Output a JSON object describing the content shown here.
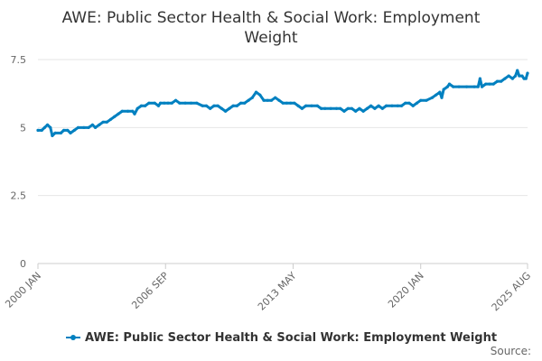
{
  "chart_data": {
    "type": "line",
    "title_lines": [
      "AWE: Public Sector Health & Social Work: Employment",
      "Weight"
    ],
    "source_label": "Source:",
    "legend": {
      "name": "AWE: Public Sector Health & Social Work: Employment Weight",
      "position": "bottom-center"
    },
    "series_color": "#0080c0",
    "ylim": [
      0,
      7.5
    ],
    "y_ticks": [
      0,
      2.5,
      5,
      7.5
    ],
    "y_tick_labels": [
      "0",
      "2.5",
      "5",
      "7.5"
    ],
    "grid": true,
    "x_ticks": [
      {
        "label": "2000 JAN",
        "x": 2000.0
      },
      {
        "label": "2006 SEP",
        "x": 2006.667
      },
      {
        "label": "2013 MAY",
        "x": 2013.333
      },
      {
        "label": "2020 JAN",
        "x": 2020.0
      },
      {
        "label": "2025 AUG",
        "x": 2025.583
      }
    ],
    "xlim": [
      2000.0,
      2025.583
    ],
    "series": [
      {
        "name": "AWE: Public Sector Health & Social Work: Employment Weight",
        "points": [
          [
            2000.0,
            4.9
          ],
          [
            2000.2,
            4.9
          ],
          [
            2000.35,
            5.0
          ],
          [
            2000.5,
            5.1
          ],
          [
            2000.65,
            5.0
          ],
          [
            2000.75,
            4.7
          ],
          [
            2000.9,
            4.8
          ],
          [
            2001.2,
            4.8
          ],
          [
            2001.35,
            4.9
          ],
          [
            2001.55,
            4.9
          ],
          [
            2001.7,
            4.8
          ],
          [
            2001.9,
            4.9
          ],
          [
            2002.1,
            5.0
          ],
          [
            2002.4,
            5.0
          ],
          [
            2002.65,
            5.0
          ],
          [
            2002.85,
            5.1
          ],
          [
            2003.0,
            5.0
          ],
          [
            2003.2,
            5.1
          ],
          [
            2003.4,
            5.2
          ],
          [
            2003.6,
            5.2
          ],
          [
            2003.8,
            5.3
          ],
          [
            2004.0,
            5.4
          ],
          [
            2004.2,
            5.5
          ],
          [
            2004.4,
            5.6
          ],
          [
            2004.7,
            5.6
          ],
          [
            2004.95,
            5.6
          ],
          [
            2005.05,
            5.5
          ],
          [
            2005.2,
            5.7
          ],
          [
            2005.4,
            5.8
          ],
          [
            2005.6,
            5.8
          ],
          [
            2005.8,
            5.9
          ],
          [
            2006.1,
            5.9
          ],
          [
            2006.3,
            5.8
          ],
          [
            2006.4,
            5.9
          ],
          [
            2006.6,
            5.9
          ],
          [
            2006.8,
            5.9
          ],
          [
            2007.0,
            5.9
          ],
          [
            2007.2,
            6.0
          ],
          [
            2007.4,
            5.9
          ],
          [
            2007.7,
            5.9
          ],
          [
            2008.0,
            5.9
          ],
          [
            2008.3,
            5.9
          ],
          [
            2008.6,
            5.8
          ],
          [
            2008.8,
            5.8
          ],
          [
            2009.0,
            5.7
          ],
          [
            2009.2,
            5.8
          ],
          [
            2009.4,
            5.8
          ],
          [
            2009.6,
            5.7
          ],
          [
            2009.8,
            5.6
          ],
          [
            2010.0,
            5.7
          ],
          [
            2010.2,
            5.8
          ],
          [
            2010.4,
            5.8
          ],
          [
            2010.6,
            5.9
          ],
          [
            2010.8,
            5.9
          ],
          [
            2011.0,
            6.0
          ],
          [
            2011.2,
            6.1
          ],
          [
            2011.4,
            6.3
          ],
          [
            2011.6,
            6.2
          ],
          [
            2011.8,
            6.0
          ],
          [
            2012.0,
            6.0
          ],
          [
            2012.2,
            6.0
          ],
          [
            2012.4,
            6.1
          ],
          [
            2012.6,
            6.0
          ],
          [
            2012.8,
            5.9
          ],
          [
            2013.0,
            5.9
          ],
          [
            2013.2,
            5.9
          ],
          [
            2013.4,
            5.9
          ],
          [
            2013.6,
            5.8
          ],
          [
            2013.8,
            5.7
          ],
          [
            2014.0,
            5.8
          ],
          [
            2014.3,
            5.8
          ],
          [
            2014.6,
            5.8
          ],
          [
            2014.8,
            5.7
          ],
          [
            2015.0,
            5.7
          ],
          [
            2015.3,
            5.7
          ],
          [
            2015.6,
            5.7
          ],
          [
            2015.8,
            5.7
          ],
          [
            2016.0,
            5.6
          ],
          [
            2016.2,
            5.7
          ],
          [
            2016.4,
            5.7
          ],
          [
            2016.6,
            5.6
          ],
          [
            2016.8,
            5.7
          ],
          [
            2017.0,
            5.6
          ],
          [
            2017.2,
            5.7
          ],
          [
            2017.4,
            5.8
          ],
          [
            2017.6,
            5.7
          ],
          [
            2017.8,
            5.8
          ],
          [
            2018.0,
            5.7
          ],
          [
            2018.2,
            5.8
          ],
          [
            2018.5,
            5.8
          ],
          [
            2018.8,
            5.8
          ],
          [
            2019.0,
            5.8
          ],
          [
            2019.2,
            5.9
          ],
          [
            2019.4,
            5.9
          ],
          [
            2019.6,
            5.8
          ],
          [
            2019.8,
            5.9
          ],
          [
            2020.0,
            6.0
          ],
          [
            2020.3,
            6.0
          ],
          [
            2020.6,
            6.1
          ],
          [
            2020.8,
            6.2
          ],
          [
            2021.0,
            6.3
          ],
          [
            2021.1,
            6.1
          ],
          [
            2021.2,
            6.4
          ],
          [
            2021.4,
            6.5
          ],
          [
            2021.5,
            6.6
          ],
          [
            2021.7,
            6.5
          ],
          [
            2022.0,
            6.5
          ],
          [
            2022.4,
            6.5
          ],
          [
            2022.8,
            6.5
          ],
          [
            2023.0,
            6.5
          ],
          [
            2023.1,
            6.8
          ],
          [
            2023.2,
            6.5
          ],
          [
            2023.4,
            6.6
          ],
          [
            2023.6,
            6.6
          ],
          [
            2023.8,
            6.6
          ],
          [
            2024.0,
            6.7
          ],
          [
            2024.2,
            6.7
          ],
          [
            2024.4,
            6.8
          ],
          [
            2024.6,
            6.9
          ],
          [
            2024.8,
            6.8
          ],
          [
            2024.95,
            6.9
          ],
          [
            2025.05,
            7.1
          ],
          [
            2025.15,
            6.9
          ],
          [
            2025.3,
            6.9
          ],
          [
            2025.4,
            6.8
          ],
          [
            2025.5,
            6.8
          ],
          [
            2025.583,
            7.0
          ]
        ]
      }
    ]
  }
}
